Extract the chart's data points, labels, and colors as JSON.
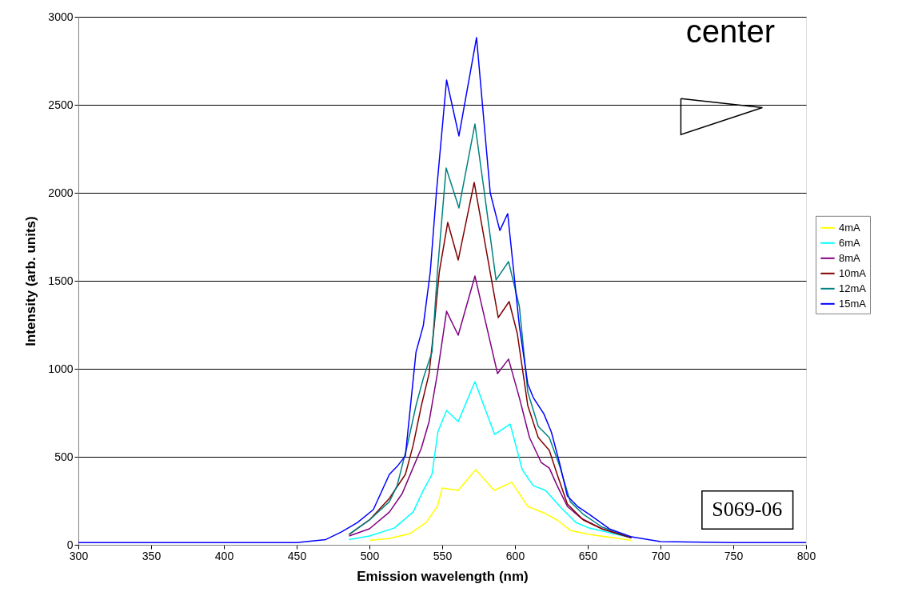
{
  "chart_data": {
    "type": "line",
    "xlabel": "Emission wavelength (nm)",
    "ylabel": "Intensity (arb. units)",
    "xlim": [
      300,
      800
    ],
    "xticks": [
      300,
      350,
      400,
      450,
      500,
      550,
      600,
      650,
      700,
      750,
      800
    ],
    "ylim": [
      0,
      3000
    ],
    "yticks": [
      0,
      500,
      1000,
      1500,
      2000,
      2500,
      3000
    ],
    "grid": "y",
    "legend": "right",
    "marker": "none",
    "line_style": "solid",
    "annotations": [
      "center",
      "S069-06"
    ],
    "series": [
      {
        "name": "4mA",
        "color": "#ffff00",
        "x": [
          500,
          514,
          528,
          539,
          546.7,
          550,
          561,
          573,
          585.7,
          597.8,
          608.8,
          621,
          629,
          638,
          651,
          680
        ],
        "values": [
          25,
          36,
          64,
          127,
          218,
          323,
          309,
          427,
          309,
          355,
          218,
          177,
          141,
          82,
          59,
          25
        ]
      },
      {
        "name": "6mA",
        "color": "#00ffff",
        "x": [
          486,
          500,
          517,
          530,
          537,
          543,
          547,
          553,
          561,
          572.5,
          586,
          596.7,
          605,
          612.6,
          621,
          630.8,
          641.8,
          651,
          680
        ],
        "values": [
          30,
          50,
          95,
          186,
          309,
          400,
          641,
          764,
          700,
          927,
          627,
          686,
          427,
          336,
          309,
          218,
          127,
          95,
          40
        ]
      },
      {
        "name": "8mA",
        "color": "#800080",
        "x": [
          486,
          500,
          513.7,
          522.5,
          535.7,
          541,
          546.7,
          553,
          561,
          572.5,
          588,
          595.6,
          603,
          610,
          618,
          623.6,
          629,
          636,
          645.6,
          660,
          680
        ],
        "values": [
          50,
          91,
          186,
          291,
          550,
          700,
          973,
          1327,
          1191,
          1527,
          973,
          1055,
          836,
          609,
          468,
          436,
          336,
          218,
          150,
          90,
          40
        ]
      },
      {
        "name": "10mA",
        "color": "#800000",
        "x": [
          486,
          500,
          513.7,
          524.7,
          530,
          535.7,
          541,
          544.5,
          548,
          553.8,
          561,
          572,
          588.5,
          596,
          601.6,
          608.8,
          616,
          623.6,
          629,
          636,
          647,
          660,
          680
        ],
        "values": [
          59,
          141,
          264,
          400,
          564,
          791,
          973,
          1245,
          1550,
          1832,
          1618,
          2059,
          1291,
          1382,
          1200,
          791,
          609,
          536,
          400,
          232,
          141,
          90,
          40
        ]
      },
      {
        "name": "12mA",
        "color": "#008080",
        "x": [
          486,
          500,
          513.7,
          519,
          526,
          532,
          537,
          543,
          546.7,
          552.7,
          561.5,
          572.5,
          579,
          587,
          595.6,
          603,
          608.8,
          616,
          623.6,
          630.8,
          638,
          647,
          660,
          680
        ],
        "values": [
          60,
          141,
          245,
          336,
          564,
          791,
          945,
          1095,
          1550,
          2141,
          1914,
          2391,
          2000,
          1505,
          1609,
          1355,
          868,
          673,
          609,
          445,
          245,
          173,
          100,
          45
        ]
      },
      {
        "name": "15mA",
        "color": "#0000ff",
        "x": [
          300,
          350,
          400,
          450,
          470,
          480.8,
          491.8,
          502.7,
          513.7,
          519,
          524.7,
          532,
          537,
          541.8,
          546,
          553,
          561.5,
          573.6,
          583,
          589.6,
          595,
          603,
          608.8,
          612.6,
          619.8,
          625,
          630.8,
          636,
          643,
          651,
          665,
          680,
          700,
          750,
          800
        ],
        "values": [
          12,
          12,
          12,
          12,
          30,
          73,
          127,
          200,
          400,
          445,
          505,
          1095,
          1245,
          1550,
          2000,
          2641,
          2323,
          2882,
          2000,
          1786,
          1882,
          1245,
          914,
          836,
          745,
          641,
          459,
          277,
          218,
          173,
          90,
          45,
          18,
          12,
          12
        ]
      }
    ]
  }
}
